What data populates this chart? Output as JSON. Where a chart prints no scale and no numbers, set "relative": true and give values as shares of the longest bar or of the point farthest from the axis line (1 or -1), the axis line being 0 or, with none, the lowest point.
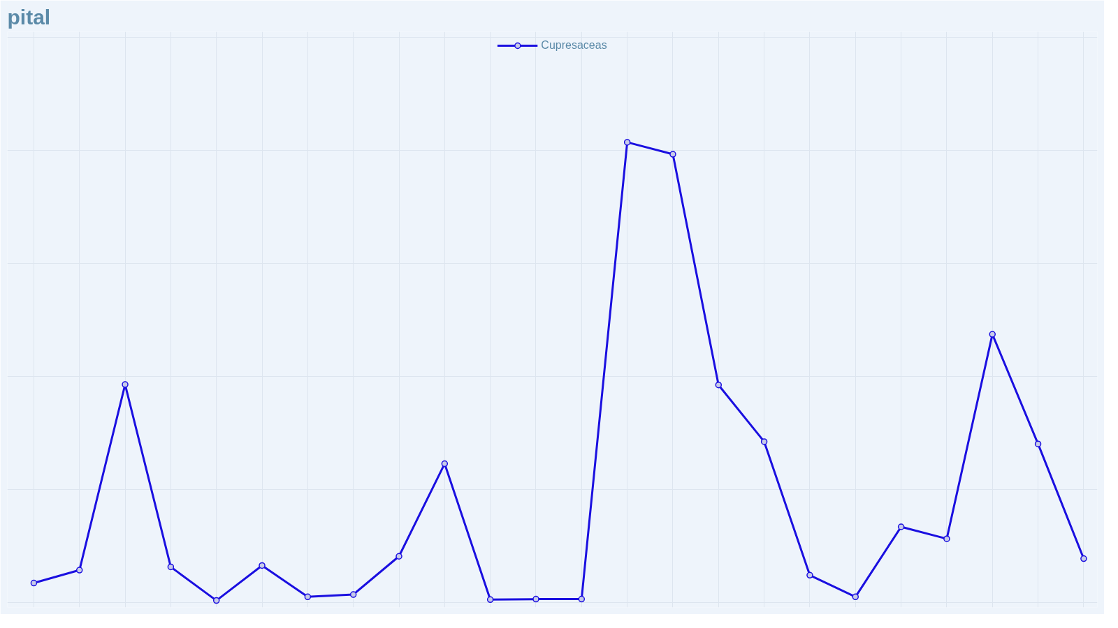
{
  "chart_data": {
    "type": "line",
    "title": "pital",
    "relative": true,
    "grid": true,
    "legend": "top",
    "marker": "circle",
    "line_style": "solid",
    "categories": [
      null,
      null,
      null,
      null,
      null,
      null,
      null,
      null,
      null,
      null,
      null,
      null,
      null,
      null,
      null,
      null,
      null,
      null,
      null,
      null,
      null,
      null,
      null,
      null
    ],
    "series": [
      {
        "name": "Cupresaceas",
        "color": "#1a0fe0",
        "values": [
          0.043,
          0.071,
          0.474,
          0.078,
          0.005,
          0.081,
          0.013,
          0.018,
          0.101,
          0.302,
          0.007,
          0.008,
          0.008,
          1,
          0.974,
          0.473,
          0.35,
          0.06,
          0.013,
          0.165,
          0.139,
          0.583,
          0.345,
          0.096
        ]
      }
    ]
  }
}
